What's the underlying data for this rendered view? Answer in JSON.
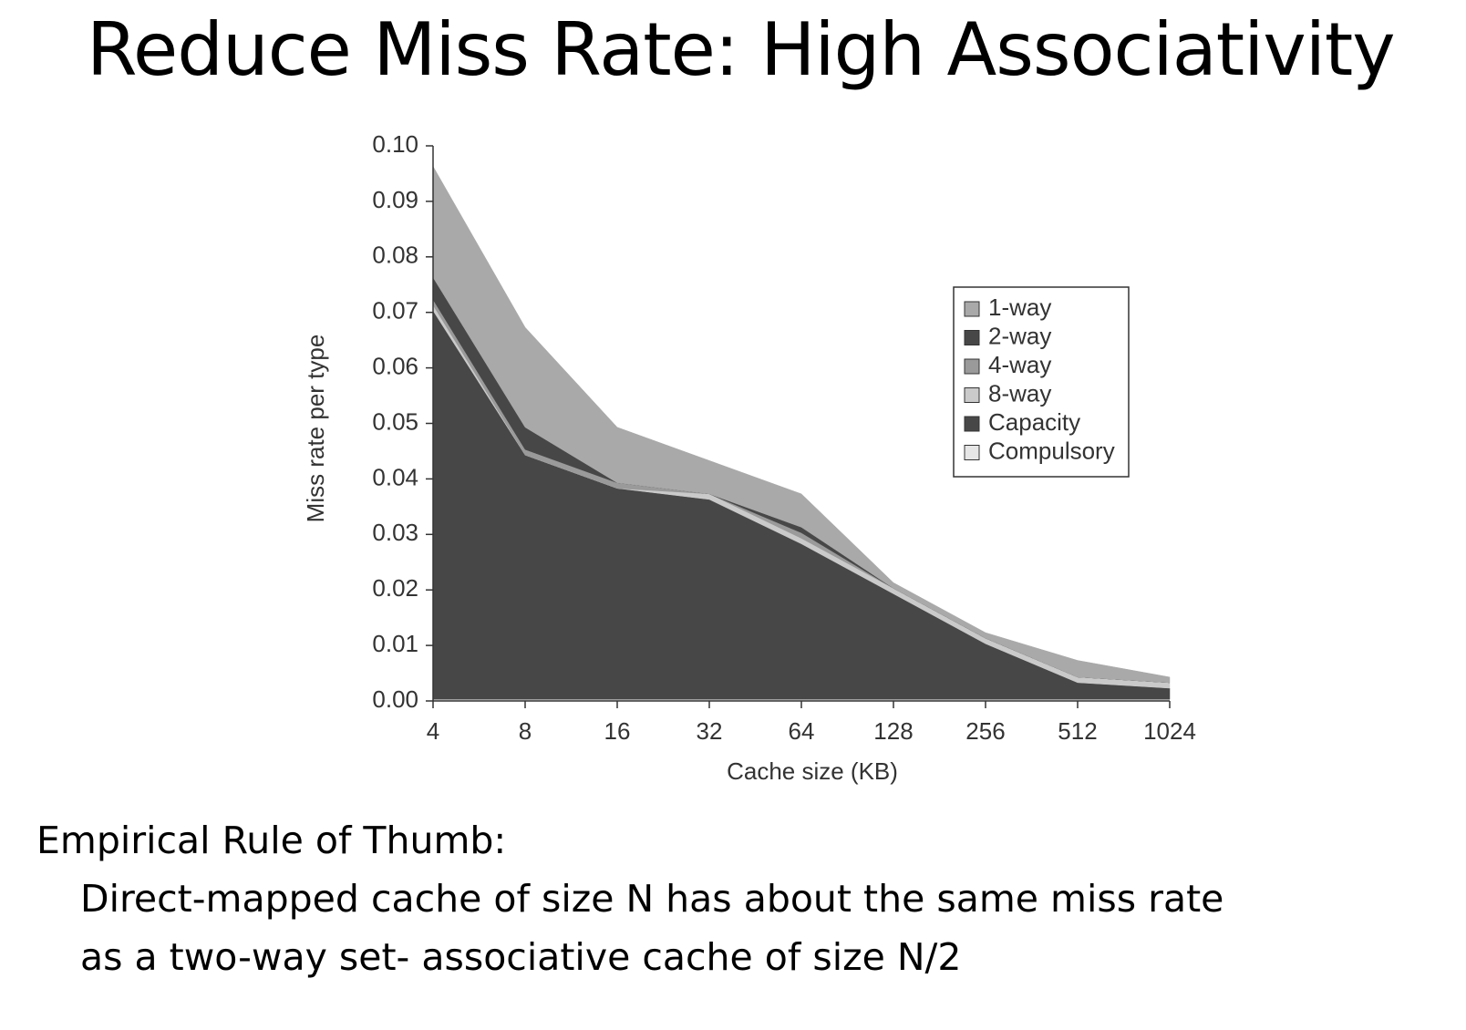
{
  "title": "Reduce Miss Rate: High Associativity",
  "chart_data": {
    "type": "stacked-area",
    "x_label": "Cache size (KB)",
    "y_label": "Miss rate per type",
    "categories": [
      "4",
      "8",
      "16",
      "32",
      "64",
      "128",
      "256",
      "512",
      "1024"
    ],
    "series": [
      {
        "name": "1-way",
        "color": "#a9a9a9",
        "values": [
          0.02,
          0.018,
          0.01,
          0.006,
          0.006,
          0.001,
          0.001,
          0.003,
          0.001
        ]
      },
      {
        "name": "2-way",
        "color": "#474747",
        "values": [
          0.004,
          0.004,
          0.0,
          0.0,
          0.001,
          0.0,
          0.0,
          0.0,
          0.0
        ]
      },
      {
        "name": "4-way",
        "color": "#9a9a9a",
        "values": [
          0.001,
          0.001,
          0.001,
          0.0,
          0.001,
          0.0,
          0.0,
          0.0,
          0.0
        ]
      },
      {
        "name": "8-way",
        "color": "#cacaca",
        "values": [
          0.001,
          0.0,
          0.0,
          0.001,
          0.001,
          0.001,
          0.001,
          0.001,
          0.001
        ]
      },
      {
        "name": "Capacity",
        "color": "#474747",
        "values": [
          0.07,
          0.044,
          0.038,
          0.036,
          0.028,
          0.019,
          0.01,
          0.003,
          0.002
        ]
      },
      {
        "name": "Compulsory",
        "color": "#e6e6e6",
        "values": [
          0.0003,
          0.0003,
          0.0003,
          0.0003,
          0.0003,
          0.0003,
          0.0003,
          0.0003,
          0.0003
        ]
      }
    ],
    "ylim": [
      0,
      0.1
    ],
    "yticks": [
      {
        "value": 0,
        "label": "0.00"
      },
      0.01,
      0.02,
      0.03,
      0.04,
      0.05,
      0.06,
      0.07,
      0.08,
      0.09,
      {
        "value": 0.1,
        "label": "0.10"
      }
    ],
    "legend": "right"
  },
  "notes": {
    "heading": "Empirical Rule of Thumb:",
    "lines": [
      "Direct-mapped cache of size N has about the same miss rate",
      "as a two-way set- associative cache of size N/2"
    ]
  }
}
